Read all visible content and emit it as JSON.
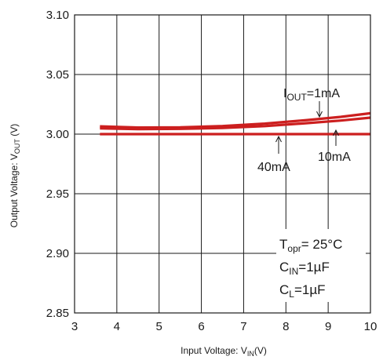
{
  "chart_data": {
    "type": "line",
    "xlabel": {
      "main": "Input Voltage: V",
      "sub": "IN",
      "tail": "(V)"
    },
    "ylabel": {
      "main": "Output Voltage: V",
      "sub": "OUT",
      "tail": " (V)"
    },
    "xlim": [
      3,
      10
    ],
    "ylim": [
      2.85,
      3.1
    ],
    "x_ticks": [
      "3",
      "4",
      "5",
      "6",
      "7",
      "8",
      "9",
      "10"
    ],
    "y_ticks": [
      "2.85",
      "2.90",
      "2.95",
      "3.00",
      "3.05",
      "3.10"
    ],
    "grid": true,
    "series_color": "#cc1f1f",
    "series": [
      {
        "name": "1mA",
        "x": [
          3.6,
          4.5,
          5.5,
          6.5,
          7.5,
          8.5,
          9.3,
          10.0
        ],
        "y": [
          3.0065,
          3.0055,
          3.0057,
          3.0068,
          3.0088,
          3.0118,
          3.0145,
          3.0175
        ]
      },
      {
        "name": "10mA",
        "x": [
          3.6,
          4.5,
          5.5,
          6.5,
          7.5,
          8.5,
          9.3,
          10.0
        ],
        "y": [
          3.0048,
          3.0042,
          3.0044,
          3.0052,
          3.0067,
          3.0092,
          3.0114,
          3.0138
        ]
      },
      {
        "name": "40mA",
        "x": [
          3.6,
          10.0
        ],
        "y": [
          3.0,
          3.0
        ]
      }
    ],
    "annotations": {
      "iout": {
        "main": "I",
        "sub": "OUT",
        "tail": "=1mA"
      },
      "ten": "10mA",
      "forty": "40mA"
    },
    "conditions": {
      "topr": {
        "main": "T",
        "sub": "opr",
        "tail": "= 25°C"
      },
      "cin": {
        "main": "C",
        "sub": "IN",
        "tail": "=1µF"
      },
      "cl": {
        "main": "C",
        "sub": "L",
        "tail": "=1µF"
      }
    }
  }
}
